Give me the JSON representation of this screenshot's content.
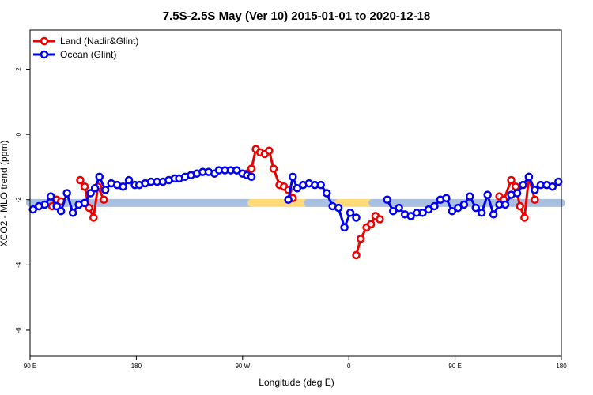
{
  "chart_data": {
    "type": "line",
    "title": "7.5S-2.5S May (Ver 10)   2015-01-01 to 2020-12-18",
    "xlabel": "Longitude (deg E)",
    "ylabel": "XCO2 - MLO trend (ppm)",
    "xlim": [
      90,
      450
    ],
    "ylim": [
      -6.8,
      3.2
    ],
    "x_ticks": [
      90,
      162,
      234,
      306,
      378,
      450
    ],
    "x_tick_labels": [
      "90 E",
      "180",
      "90 W",
      "0",
      "90 E",
      "180"
    ],
    "y_ticks": [
      2,
      0,
      -2,
      -4,
      -6
    ],
    "y_tick_labels": [
      "2",
      "0",
      "-2",
      "-4",
      "-6"
    ],
    "legend": [
      {
        "name": "Land (Nadir&Glint)",
        "color": "#ee0000"
      },
      {
        "name": "Ocean (Glint)",
        "color": "#0000ee"
      }
    ],
    "legend_position": "top-left",
    "grid": false,
    "reference_band": {
      "y": -2.1,
      "segments": [
        {
          "x": [
            90,
            240
          ],
          "color": "#a9bfe0"
        },
        {
          "x": [
            240,
            278
          ],
          "color": "#ffd97a"
        },
        {
          "x": [
            278,
            299
          ],
          "color": "#a9bfe0"
        },
        {
          "x": [
            299,
            322
          ],
          "color": "#ffd97a"
        },
        {
          "x": [
            322,
            450
          ],
          "color": "#a9bfe0"
        }
      ]
    },
    "series": [
      {
        "name": "Land (Nadir&Glint)",
        "color": "#ee0000",
        "segments": [
          {
            "x": [
              105,
              108,
              111
            ],
            "y": [
              -2.2,
              -2.0,
              -2.05
            ]
          },
          {
            "x": [
              124,
              127,
              130,
              133,
              136,
              140
            ],
            "y": [
              -1.4,
              -1.6,
              -2.25,
              -2.55,
              -1.6,
              -2.0
            ]
          },
          {
            "x": [
              237,
              240,
              243,
              246,
              249,
              252,
              255,
              259,
              262,
              265,
              268
            ],
            "y": [
              -1.2,
              -1.05,
              -0.45,
              -0.55,
              -0.6,
              -0.5,
              -1.05,
              -1.55,
              -1.6,
              -1.7,
              -1.95
            ]
          },
          {
            "x": [
              311,
              314,
              318,
              321,
              324,
              327
            ],
            "y": [
              -3.7,
              -3.2,
              -2.85,
              -2.75,
              -2.5,
              -2.6
            ]
          },
          {
            "x": [
              408,
              411,
              416,
              419,
              422,
              425,
              428,
              432
            ],
            "y": [
              -1.9,
              -2.0,
              -1.4,
              -1.6,
              -2.2,
              -2.55,
              -1.3,
              -2.0
            ]
          }
        ]
      },
      {
        "name": "Ocean (Glint)",
        "color": "#0000ee",
        "segments": [
          {
            "x": [
              92,
              96,
              100,
              104,
              108,
              111,
              115,
              119,
              123,
              127,
              131,
              134,
              137,
              141,
              145,
              149,
              153,
              157,
              161,
              164,
              168,
              172,
              176,
              180,
              184,
              188,
              191,
              195,
              199,
              203,
              207,
              211,
              215,
              218,
              222,
              226,
              230,
              234,
              237,
              240
            ],
            "y": [
              -2.3,
              -2.2,
              -2.15,
              -1.9,
              -2.2,
              -2.35,
              -1.8,
              -2.4,
              -2.15,
              -2.1,
              -1.8,
              -1.65,
              -1.3,
              -1.7,
              -1.5,
              -1.55,
              -1.6,
              -1.4,
              -1.55,
              -1.55,
              -1.5,
              -1.45,
              -1.45,
              -1.45,
              -1.4,
              -1.35,
              -1.35,
              -1.3,
              -1.25,
              -1.2,
              -1.15,
              -1.15,
              -1.2,
              -1.1,
              -1.1,
              -1.1,
              -1.1,
              -1.2,
              -1.25,
              -1.3
            ]
          },
          {
            "x": [
              265,
              268,
              271,
              275,
              279,
              283,
              287,
              291,
              295,
              299,
              303,
              307,
              311
            ],
            "y": [
              -2.0,
              -1.3,
              -1.65,
              -1.55,
              -1.5,
              -1.55,
              -1.55,
              -1.8,
              -2.2,
              -2.25,
              -2.85,
              -2.4,
              -2.55
            ]
          },
          {
            "x": [
              332,
              336,
              340,
              344,
              348,
              352,
              356,
              360,
              364,
              368,
              372,
              376,
              380,
              384,
              388,
              392,
              396,
              400,
              404,
              408,
              412,
              416,
              420,
              424,
              428,
              432,
              436,
              440,
              444,
              448
            ],
            "y": [
              -2.0,
              -2.35,
              -2.25,
              -2.45,
              -2.5,
              -2.4,
              -2.4,
              -2.3,
              -2.2,
              -2.0,
              -1.95,
              -2.35,
              -2.25,
              -2.15,
              -1.9,
              -2.25,
              -2.4,
              -1.85,
              -2.45,
              -2.15,
              -2.15,
              -1.85,
              -1.8,
              -1.55,
              -1.3,
              -1.7,
              -1.55,
              -1.55,
              -1.6,
              -1.45
            ]
          }
        ]
      }
    ]
  }
}
